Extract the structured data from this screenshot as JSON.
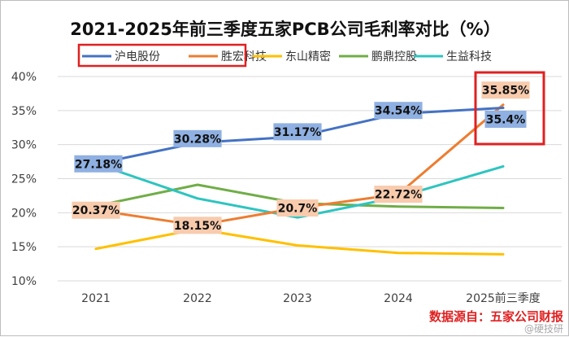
{
  "chart_data": {
    "type": "line",
    "title": "2021-2025年前三季度五家PCB公司毛利率对比（%）",
    "categories": [
      "2021",
      "2022",
      "2023",
      "2024",
      "2025前三季度"
    ],
    "ylim": [
      10,
      40
    ],
    "yticks": [
      "10%",
      "15%",
      "20%",
      "25%",
      "30%",
      "35%",
      "40%"
    ],
    "ytick_values": [
      10,
      15,
      20,
      25,
      30,
      35,
      40
    ],
    "grid": true,
    "legend_position": "top",
    "series": [
      {
        "name": "沪电股份",
        "color": "#4472c4",
        "values": [
          27.18,
          30.28,
          31.17,
          34.54,
          35.4
        ],
        "labels": [
          "27.18%",
          "30.28%",
          "31.17%",
          "34.54%",
          "35.4%"
        ],
        "label_bg": "#8fb0e2"
      },
      {
        "name": "胜宏科技",
        "color": "#ed7d31",
        "values": [
          20.37,
          18.15,
          20.7,
          22.72,
          35.85
        ],
        "labels": [
          "20.37%",
          "18.15%",
          "20.7%",
          "22.72%",
          "35.85%"
        ],
        "label_bg": "#f8cbad"
      },
      {
        "name": "东山精密",
        "color": "#ffc000",
        "values": [
          14.7,
          17.6,
          15.2,
          14.1,
          13.9
        ]
      },
      {
        "name": "鹏鼎控股",
        "color": "#70ad47",
        "values": [
          21.0,
          24.1,
          21.4,
          20.9,
          20.7
        ]
      },
      {
        "name": "生益科技",
        "color": "#2ec4c0",
        "values": [
          27.2,
          22.1,
          19.3,
          22.3,
          26.8
        ]
      }
    ],
    "highlight_color": "#e02020",
    "source_note": "数据源自：五家公司财报",
    "watermark": "@硬技研"
  }
}
